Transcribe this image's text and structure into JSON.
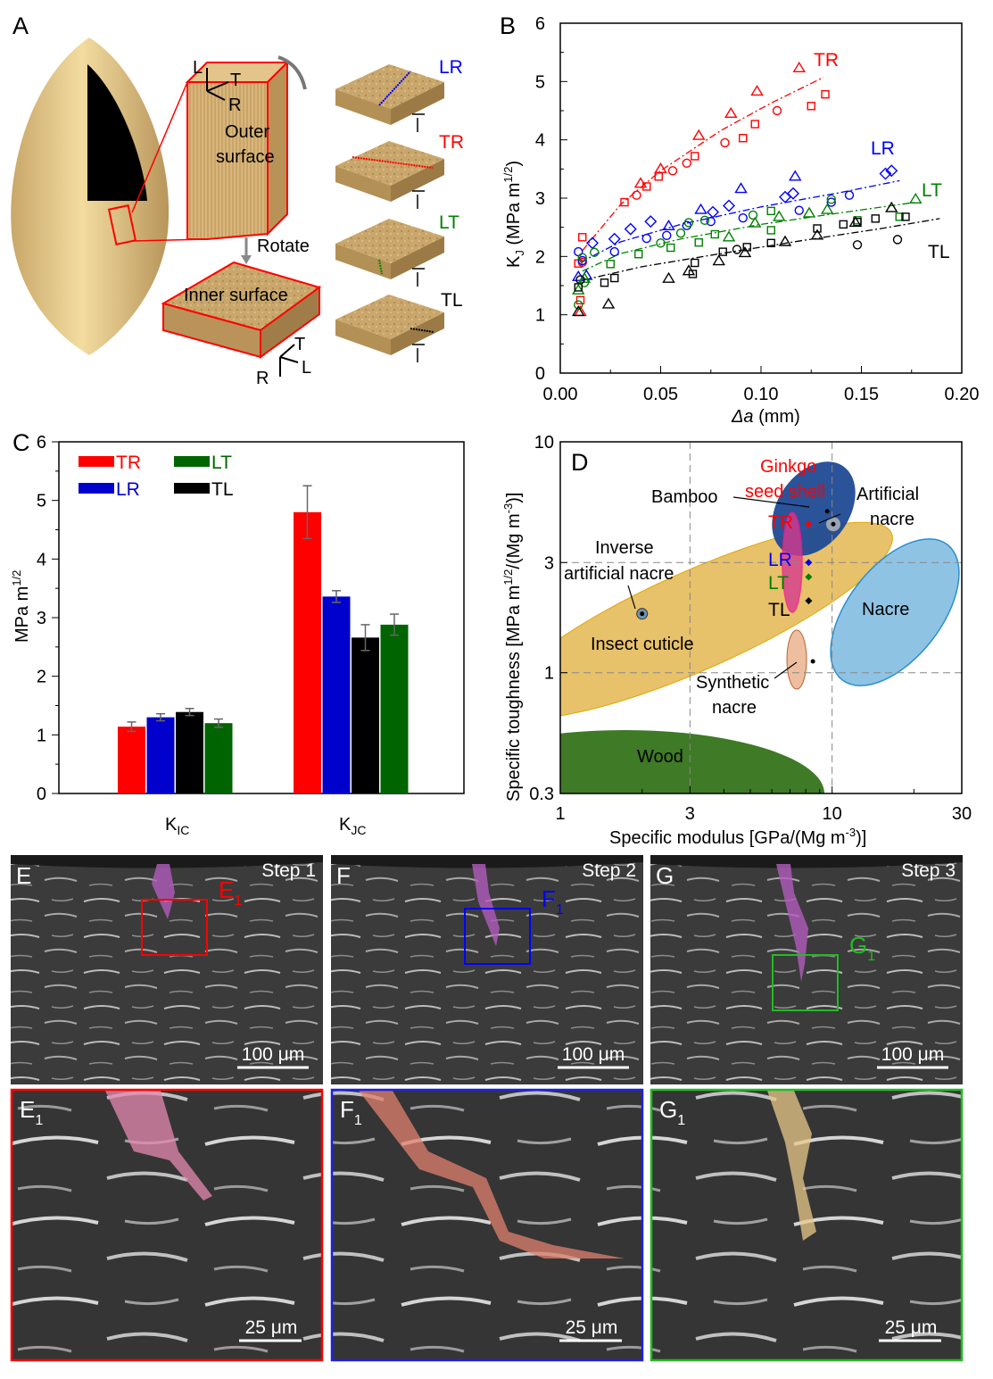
{
  "panel_a": {
    "label": "A",
    "outer_axes": [
      "L",
      "T",
      "R"
    ],
    "outer_text": [
      "Outer",
      "surface"
    ],
    "rotate": "Rotate",
    "inner_text": "Inner surface",
    "inner_axes": [
      "T",
      "R",
      "L"
    ],
    "orientations": [
      {
        "name": "LR",
        "color": "#0000ff"
      },
      {
        "name": "TR",
        "color": "#ff0000"
      },
      {
        "name": "LT",
        "color": "#008000"
      },
      {
        "name": "TL",
        "color": "#000000"
      }
    ]
  },
  "chart_data": [
    {
      "panel": "B",
      "type": "scatter",
      "xlabel": {
        "italic": "Δa",
        "rest": " (mm)"
      },
      "ylabel": {
        "main": "K",
        "sub": "J",
        "rest": " (MPa m",
        "sup": "1/2",
        "end": ")"
      },
      "xlim": [
        0,
        0.2
      ],
      "ylim": [
        0,
        6
      ],
      "xticks": [
        "0.00",
        "0.05",
        "0.10",
        "0.15",
        "0.20"
      ],
      "yticks": [
        "0",
        "1",
        "2",
        "3",
        "4",
        "5",
        "6"
      ],
      "series": [
        {
          "name": "TR",
          "color": "#ff0000",
          "points": [
            {
              "m": "tri",
              "x": 0.01,
              "y": 1.05
            },
            {
              "m": "tri",
              "x": 0.04,
              "y": 3.25
            },
            {
              "m": "tri",
              "x": 0.05,
              "y": 3.5
            },
            {
              "m": "tri",
              "x": 0.069,
              "y": 4.07
            },
            {
              "m": "tri",
              "x": 0.085,
              "y": 4.45
            },
            {
              "m": "tri",
              "x": 0.098,
              "y": 4.83
            },
            {
              "m": "tri",
              "x": 0.119,
              "y": 5.23
            },
            {
              "m": "circ",
              "x": 0.011,
              "y": 1.9
            },
            {
              "m": "circ",
              "x": 0.038,
              "y": 3.05
            },
            {
              "m": "circ",
              "x": 0.056,
              "y": 3.47
            },
            {
              "m": "circ",
              "x": 0.063,
              "y": 3.6
            },
            {
              "m": "circ",
              "x": 0.082,
              "y": 3.95
            },
            {
              "m": "circ",
              "x": 0.108,
              "y": 4.5
            },
            {
              "m": "sq",
              "x": 0.01,
              "y": 1.25
            },
            {
              "m": "sq",
              "x": 0.009,
              "y": 1.88
            },
            {
              "m": "sq",
              "x": 0.011,
              "y": 2.33
            },
            {
              "m": "sq",
              "x": 0.032,
              "y": 2.93
            },
            {
              "m": "sq",
              "x": 0.043,
              "y": 3.2
            },
            {
              "m": "sq",
              "x": 0.049,
              "y": 3.37
            },
            {
              "m": "sq",
              "x": 0.067,
              "y": 3.72
            },
            {
              "m": "sq",
              "x": 0.091,
              "y": 4.03
            },
            {
              "m": "sq",
              "x": 0.097,
              "y": 4.27
            },
            {
              "m": "sq",
              "x": 0.125,
              "y": 4.58
            },
            {
              "m": "sq",
              "x": 0.132,
              "y": 4.78
            }
          ],
          "fit": [
            [
              0.011,
              2.1
            ],
            [
              0.03,
              2.89
            ],
            [
              0.05,
              3.47
            ],
            [
              0.08,
              4.16
            ],
            [
              0.105,
              4.63
            ],
            [
              0.131,
              5.07
            ]
          ]
        },
        {
          "name": "LR",
          "color": "#0000ff",
          "points": [
            {
              "m": "circ",
              "x": 0.009,
              "y": 2.08
            },
            {
              "m": "circ",
              "x": 0.011,
              "y": 1.93
            },
            {
              "m": "circ",
              "x": 0.027,
              "y": 2.08
            },
            {
              "m": "circ",
              "x": 0.043,
              "y": 2.31
            },
            {
              "m": "circ",
              "x": 0.053,
              "y": 2.36
            },
            {
              "m": "circ",
              "x": 0.063,
              "y": 2.53
            },
            {
              "m": "circ",
              "x": 0.075,
              "y": 2.6
            },
            {
              "m": "circ",
              "x": 0.091,
              "y": 2.66
            },
            {
              "m": "circ",
              "x": 0.119,
              "y": 2.79
            },
            {
              "m": "circ",
              "x": 0.135,
              "y": 2.93
            },
            {
              "m": "circ",
              "x": 0.144,
              "y": 3.05
            },
            {
              "m": "dia",
              "x": 0.016,
              "y": 2.23
            },
            {
              "m": "dia",
              "x": 0.027,
              "y": 2.3
            },
            {
              "m": "dia",
              "x": 0.035,
              "y": 2.47
            },
            {
              "m": "dia",
              "x": 0.045,
              "y": 2.6
            },
            {
              "m": "dia",
              "x": 0.076,
              "y": 2.76
            },
            {
              "m": "dia",
              "x": 0.084,
              "y": 2.87
            },
            {
              "m": "dia",
              "x": 0.112,
              "y": 3.02
            },
            {
              "m": "dia",
              "x": 0.116,
              "y": 3.08
            },
            {
              "m": "dia",
              "x": 0.162,
              "y": 3.42
            },
            {
              "m": "dia",
              "x": 0.165,
              "y": 3.47
            },
            {
              "m": "tri",
              "x": 0.009,
              "y": 1.65
            },
            {
              "m": "tri",
              "x": 0.013,
              "y": 1.67
            },
            {
              "m": "tri",
              "x": 0.054,
              "y": 2.52
            },
            {
              "m": "tri",
              "x": 0.07,
              "y": 2.8
            },
            {
              "m": "tri",
              "x": 0.09,
              "y": 3.16
            },
            {
              "m": "tri",
              "x": 0.117,
              "y": 3.37
            }
          ],
          "fit": [
            [
              0.01,
              1.9
            ],
            [
              0.03,
              2.25
            ],
            [
              0.06,
              2.55
            ],
            [
              0.1,
              2.85
            ],
            [
              0.14,
              3.1
            ],
            [
              0.169,
              3.3
            ]
          ]
        },
        {
          "name": "LT",
          "color": "#008000",
          "points": [
            {
              "m": "circ",
              "x": 0.009,
              "y": 1.17
            },
            {
              "m": "circ",
              "x": 0.012,
              "y": 1.55
            },
            {
              "m": "circ",
              "x": 0.011,
              "y": 1.98
            },
            {
              "m": "circ",
              "x": 0.017,
              "y": 2.07
            },
            {
              "m": "circ",
              "x": 0.05,
              "y": 2.23
            },
            {
              "m": "circ",
              "x": 0.06,
              "y": 2.4
            },
            {
              "m": "circ",
              "x": 0.064,
              "y": 2.58
            },
            {
              "m": "circ",
              "x": 0.072,
              "y": 2.62
            },
            {
              "m": "circ",
              "x": 0.096,
              "y": 2.71
            },
            {
              "m": "circ",
              "x": 0.135,
              "y": 2.98
            },
            {
              "m": "sq",
              "x": 0.025,
              "y": 1.87
            },
            {
              "m": "sq",
              "x": 0.039,
              "y": 2.04
            },
            {
              "m": "sq",
              "x": 0.055,
              "y": 2.15
            },
            {
              "m": "sq",
              "x": 0.069,
              "y": 2.24
            },
            {
              "m": "sq",
              "x": 0.077,
              "y": 2.38
            },
            {
              "m": "sq",
              "x": 0.105,
              "y": 2.45
            },
            {
              "m": "sq",
              "x": 0.105,
              "y": 2.78
            },
            {
              "m": "sq",
              "x": 0.148,
              "y": 2.62
            },
            {
              "m": "sq",
              "x": 0.169,
              "y": 2.68
            },
            {
              "m": "tri",
              "x": 0.009,
              "y": 1.42
            },
            {
              "m": "tri",
              "x": 0.012,
              "y": 1.62
            },
            {
              "m": "tri",
              "x": 0.084,
              "y": 2.33
            },
            {
              "m": "tri",
              "x": 0.097,
              "y": 2.57
            },
            {
              "m": "tri",
              "x": 0.109,
              "y": 2.68
            },
            {
              "m": "tri",
              "x": 0.124,
              "y": 2.74
            },
            {
              "m": "tri",
              "x": 0.133,
              "y": 2.8
            },
            {
              "m": "tri",
              "x": 0.177,
              "y": 2.98
            }
          ],
          "fit": [
            [
              0.011,
              1.75
            ],
            [
              0.03,
              2.05
            ],
            [
              0.06,
              2.3
            ],
            [
              0.1,
              2.55
            ],
            [
              0.14,
              2.75
            ],
            [
              0.177,
              2.93
            ]
          ]
        },
        {
          "name": "TL",
          "color": "#000000",
          "points": [
            {
              "m": "tri",
              "x": 0.009,
              "y": 1.05
            },
            {
              "m": "tri",
              "x": 0.024,
              "y": 1.18
            },
            {
              "m": "tri",
              "x": 0.054,
              "y": 1.62
            },
            {
              "m": "tri",
              "x": 0.064,
              "y": 1.75
            },
            {
              "m": "tri",
              "x": 0.079,
              "y": 1.92
            },
            {
              "m": "tri",
              "x": 0.092,
              "y": 2.06
            },
            {
              "m": "tri",
              "x": 0.112,
              "y": 2.25
            },
            {
              "m": "tri",
              "x": 0.128,
              "y": 2.36
            },
            {
              "m": "tri",
              "x": 0.147,
              "y": 2.58
            },
            {
              "m": "tri",
              "x": 0.165,
              "y": 2.83
            },
            {
              "m": "sq",
              "x": 0.009,
              "y": 1.47
            },
            {
              "m": "sq",
              "x": 0.022,
              "y": 1.55
            },
            {
              "m": "sq",
              "x": 0.027,
              "y": 1.63
            },
            {
              "m": "sq",
              "x": 0.066,
              "y": 1.7
            },
            {
              "m": "sq",
              "x": 0.067,
              "y": 1.89
            },
            {
              "m": "sq",
              "x": 0.081,
              "y": 2.08
            },
            {
              "m": "sq",
              "x": 0.093,
              "y": 2.16
            },
            {
              "m": "sq",
              "x": 0.105,
              "y": 2.23
            },
            {
              "m": "sq",
              "x": 0.128,
              "y": 2.48
            },
            {
              "m": "sq",
              "x": 0.141,
              "y": 2.55
            },
            {
              "m": "sq",
              "x": 0.148,
              "y": 2.59
            },
            {
              "m": "sq",
              "x": 0.157,
              "y": 2.65
            },
            {
              "m": "sq",
              "x": 0.172,
              "y": 2.68
            },
            {
              "m": "circ",
              "x": 0.01,
              "y": 1.6
            },
            {
              "m": "circ",
              "x": 0.088,
              "y": 2.12
            },
            {
              "m": "circ",
              "x": 0.148,
              "y": 2.2
            },
            {
              "m": "circ",
              "x": 0.168,
              "y": 2.29
            }
          ],
          "fit": [
            [
              0.012,
              1.6
            ],
            [
              0.04,
              1.82
            ],
            [
              0.08,
              2.05
            ],
            [
              0.12,
              2.27
            ],
            [
              0.16,
              2.48
            ],
            [
              0.189,
              2.65
            ]
          ]
        }
      ]
    },
    {
      "panel": "C",
      "type": "bar",
      "ylabel": {
        "rest": "MPa m",
        "sup": "1/2"
      },
      "ylim": [
        0,
        6
      ],
      "yticks": [
        "0",
        "1",
        "2",
        "3",
        "4",
        "5",
        "6"
      ],
      "categories": [
        {
          "main": "K",
          "sub": "IC"
        },
        {
          "main": "K",
          "sub": "JC"
        }
      ],
      "legend": "top-left",
      "series": [
        {
          "name": "TR",
          "color": "#ff0000",
          "values": [
            1.14,
            4.8
          ],
          "errors": [
            0.08,
            0.45
          ]
        },
        {
          "name": "LR",
          "color": "#0000cd",
          "values": [
            1.3,
            3.36
          ],
          "errors": [
            0.06,
            0.1
          ]
        },
        {
          "name": "TL",
          "color": "#000000",
          "values": [
            1.39,
            2.66
          ],
          "errors": [
            0.06,
            0.22
          ]
        },
        {
          "name": "LT",
          "color": "#006400",
          "values": [
            1.2,
            2.88
          ],
          "errors": [
            0.07,
            0.18
          ]
        }
      ],
      "error_color": "#666666"
    },
    {
      "panel": "D",
      "type": "scatter",
      "xscale": "log",
      "yscale": "log",
      "xlim": [
        1,
        30
      ],
      "ylim": [
        0.3,
        10
      ],
      "xticks": [
        "1",
        "3",
        "10",
        "30"
      ],
      "yticks": [
        "0.3",
        "1",
        "3",
        "10"
      ],
      "gridlines": {
        "x": [
          3,
          10
        ],
        "y": [
          1,
          3
        ],
        "style": "dashed"
      },
      "xlabel": {
        "rest": "Specific modulus [GPa/(Mg m",
        "sup": "-3",
        "end": ")]"
      },
      "ylabel": {
        "rest": "Specific toughness [MPa m",
        "sup": "1/2",
        "mid": "/(Mg m",
        "sup2": "-3",
        "end": ")]"
      },
      "regions": [
        {
          "name": "Wood",
          "color": "#3f7a26"
        },
        {
          "name": "Insect cuticle",
          "color": "#e8c16b"
        },
        {
          "name": "Bamboo",
          "color": "#1f4a94"
        },
        {
          "name": "Nacre",
          "color": "#8fc3e4"
        },
        {
          "name": "Synthetic nacre",
          "color": "#edbfa0"
        },
        {
          "name": "Ginkgo seed shell",
          "color": "#d63a8f"
        }
      ],
      "labels": {
        "wood": "Wood",
        "insect": "Insect cuticle",
        "bamboo": "Bamboo",
        "ginkgo": [
          "Ginkgo",
          "seed shell"
        ],
        "artificial": [
          "Artificial",
          "nacre"
        ],
        "inverse": [
          "Inverse",
          "artificial nacre"
        ],
        "nacre": "Nacre",
        "synthetic": [
          "Synthetic",
          "nacre"
        ]
      },
      "points": [
        {
          "name": "TR",
          "x": 8.2,
          "y": 4.4,
          "color": "#ff0000"
        },
        {
          "name": "LR",
          "x": 8.2,
          "y": 3.0,
          "color": "#0000ff"
        },
        {
          "name": "LT",
          "x": 8.2,
          "y": 2.6,
          "color": "#008000"
        },
        {
          "name": "TL",
          "x": 8.2,
          "y": 2.05,
          "color": "#000000"
        }
      ],
      "markers": [
        {
          "name": "Artificial nacre",
          "x": 10.1,
          "y": 4.4
        },
        {
          "name": "Inverse artificial nacre",
          "x": 2.0,
          "y": 1.8
        },
        {
          "name": "Bamboo",
          "x": 9.6,
          "y": 5.0
        },
        {
          "name": "Synthetic nacre",
          "x": 8.5,
          "y": 1.12
        }
      ]
    }
  ],
  "sem": {
    "top": [
      {
        "label": "E",
        "step": "Step 1",
        "inset": "E",
        "inset_sub": "1",
        "color": "#ff0000",
        "scale": "100 μm"
      },
      {
        "label": "F",
        "step": "Step 2",
        "inset": "F",
        "inset_sub": "1",
        "color": "#0000ff",
        "scale": "100 μm"
      },
      {
        "label": "G",
        "step": "Step 3",
        "inset": "G",
        "inset_sub": "1",
        "color": "#22bb22",
        "scale": "100 μm"
      }
    ],
    "bottom": [
      {
        "label": "E",
        "sub": "1",
        "scale": "25 μm"
      },
      {
        "label": "F",
        "sub": "1",
        "scale": "25 μm"
      },
      {
        "label": "G",
        "sub": "1",
        "scale": "25 μm"
      }
    ]
  }
}
